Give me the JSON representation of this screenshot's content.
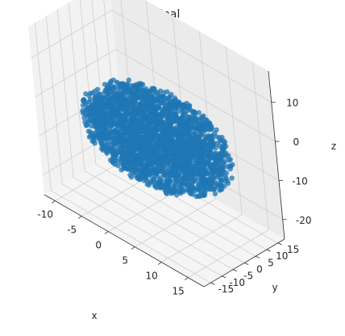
{
  "chart_data": {
    "type": "scatter",
    "projection": "3d",
    "title": "Original",
    "xlabel": "x",
    "ylabel": "y",
    "zlabel": "z",
    "xlim": [
      -12,
      18
    ],
    "ylim": [
      -18,
      18
    ],
    "zlim": [
      -25,
      18
    ],
    "xticks": [
      -10,
      -5,
      0,
      5,
      10,
      15
    ],
    "yticks": [
      -15,
      -10,
      -5,
      0,
      5,
      10,
      15
    ],
    "zticks": [
      -20,
      -10,
      0,
      10
    ],
    "grid": true,
    "marker_color": "#1f77b4",
    "cloud": {
      "shape": "ellipsoid",
      "center": [
        3,
        0,
        -5
      ],
      "semi_axes": [
        13,
        15,
        10
      ]
    }
  }
}
